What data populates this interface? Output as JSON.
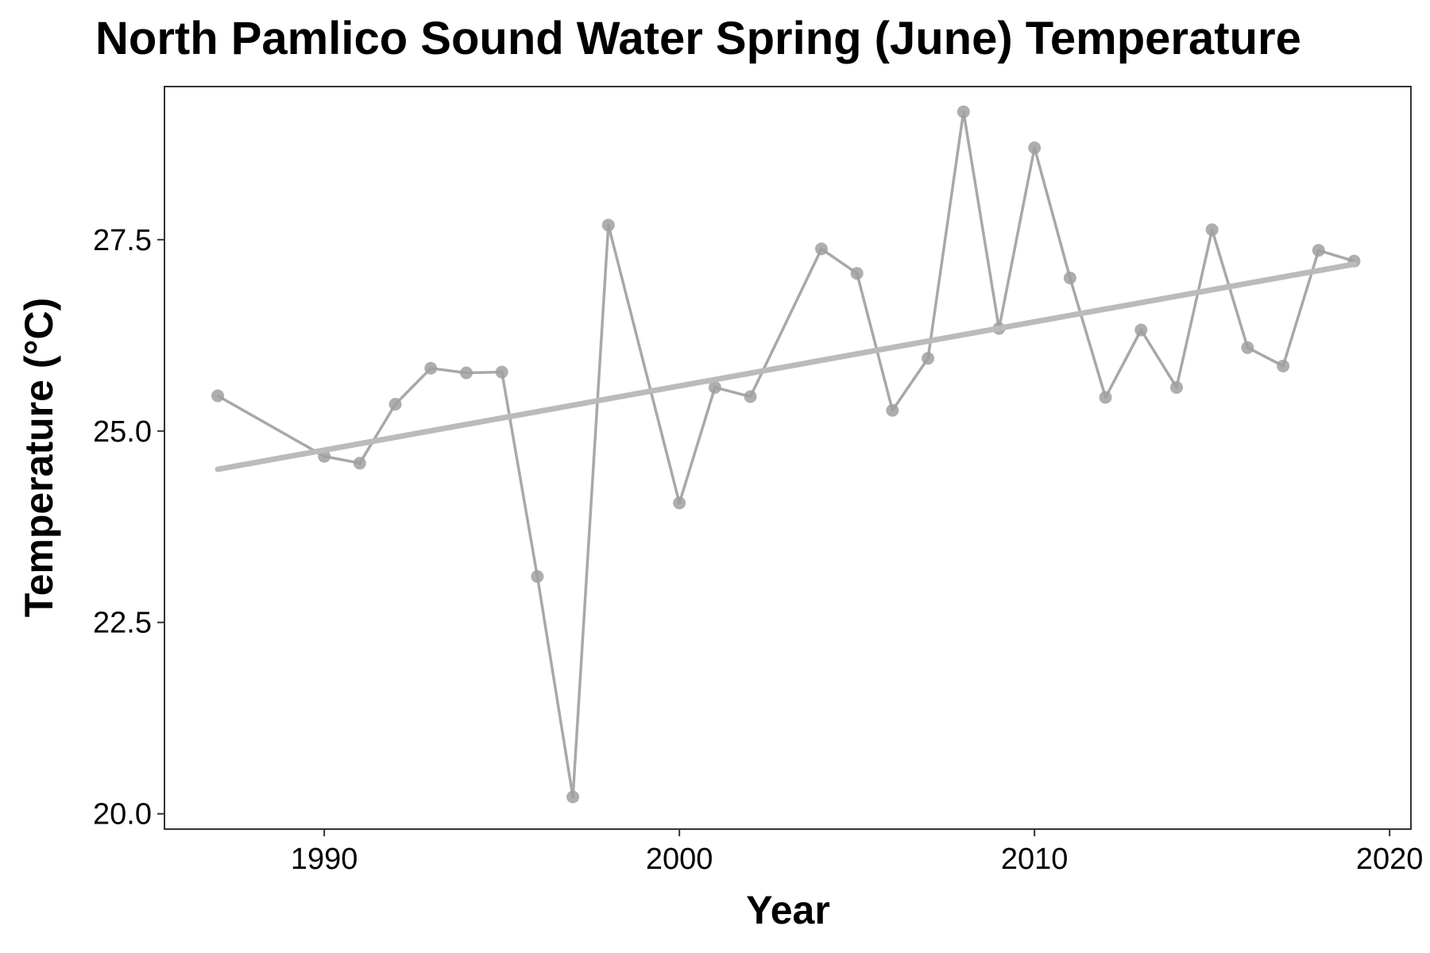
{
  "chart_data": {
    "type": "line",
    "title": "North Pamlico Sound Water Spring (June) Temperature",
    "xlabel": "Year",
    "ylabel": "Temperature (°C)",
    "xlim": [
      1985.5,
      2020.6
    ],
    "ylim": [
      19.8,
      29.5
    ],
    "x_ticks": [
      1990,
      2000,
      2010,
      2020
    ],
    "y_ticks": [
      20.0,
      22.5,
      25.0,
      27.5
    ],
    "x_tick_labels": [
      "1990",
      "2000",
      "2010",
      "2020"
    ],
    "y_tick_labels": [
      "20.0",
      "22.5",
      "25.0",
      "27.5"
    ],
    "grid": false,
    "legend": "none",
    "series": [
      {
        "x": [
          1987,
          1990,
          1991,
          1992,
          1993,
          1994,
          1995,
          1996,
          1997,
          1998,
          2000,
          2001,
          2002,
          2004,
          2005,
          2006,
          2007,
          2008,
          2009,
          2010,
          2011,
          2012,
          2013,
          2014,
          2015,
          2016,
          2017,
          2018,
          2019
        ],
        "values": [
          25.46,
          24.67,
          24.58,
          25.35,
          25.82,
          25.76,
          25.77,
          23.1,
          20.22,
          27.69,
          24.06,
          25.57,
          25.45,
          27.38,
          27.06,
          25.27,
          25.95,
          29.17,
          26.34,
          28.7,
          27.0,
          25.44,
          26.32,
          25.57,
          27.63,
          26.09,
          25.85,
          27.36,
          27.22
        ]
      }
    ],
    "trendline": {
      "x": [
        1987,
        2019
      ],
      "values": [
        24.5,
        27.18
      ]
    },
    "colors": {
      "series": "#a8a8a8",
      "points": "#a0a0a0",
      "trend": "#b8bcbd",
      "frame": "#333333"
    }
  }
}
